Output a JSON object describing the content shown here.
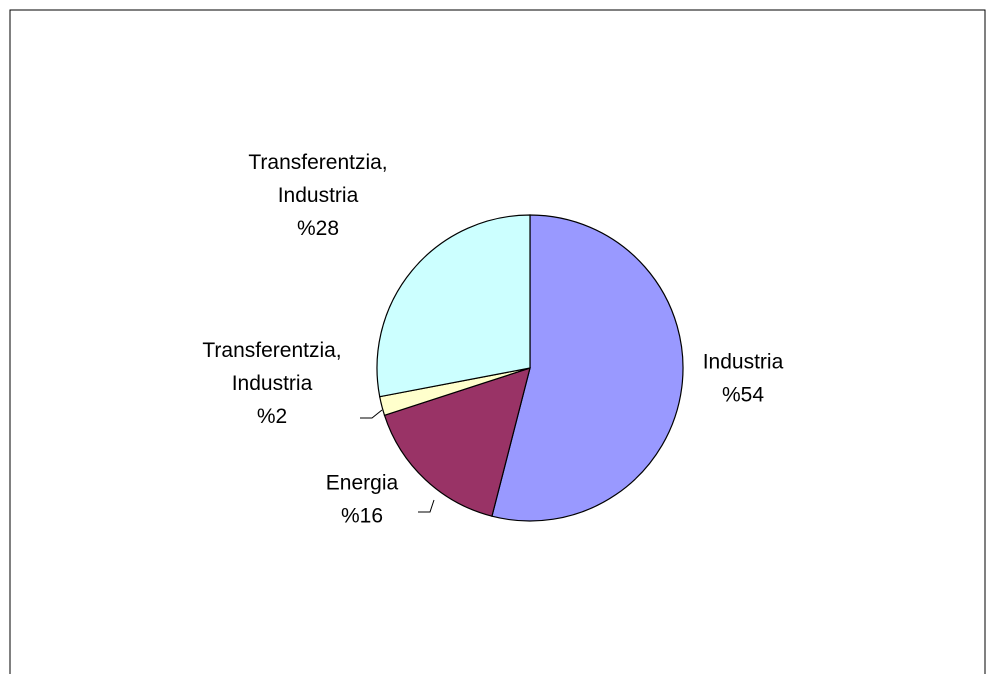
{
  "chart_data": {
    "type": "pie",
    "title": "",
    "slices": [
      {
        "name": "Industria",
        "value": 54,
        "label_lines": [
          "Industria",
          "%54"
        ],
        "color": "#9999FF"
      },
      {
        "name": "Energia",
        "value": 16,
        "label_lines": [
          "Energia",
          "%16"
        ],
        "color": "#993366"
      },
      {
        "name": "Transferentzia, Industria",
        "value": 2,
        "label_lines": [
          "Transferentzia,",
          "Industria",
          "%2"
        ],
        "color": "#FFFFCC"
      },
      {
        "name": "Transferentzia, Industria",
        "value": 28,
        "label_lines": [
          "Transferentzia,",
          "Industria",
          "%28"
        ],
        "color": "#CCFFFF"
      }
    ],
    "start_angle": "12 o'clock",
    "direction": "clockwise",
    "legend": "none"
  }
}
